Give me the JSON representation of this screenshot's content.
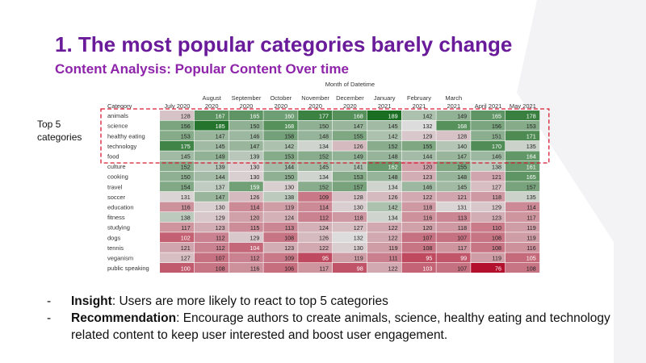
{
  "slide": {
    "title": "1. The most popular categories barely change",
    "subtitle": "Content Analysis: Popular Content Over time"
  },
  "chart_data": {
    "type": "heatmap",
    "header": "Month of Datetime",
    "row_header": "Category",
    "columns": [
      [
        "July 2020"
      ],
      [
        "August",
        "2020"
      ],
      [
        "September",
        "2020"
      ],
      [
        "October",
        "2020"
      ],
      [
        "November",
        "2020"
      ],
      [
        "December",
        "2020"
      ],
      [
        "January",
        "2021"
      ],
      [
        "February",
        "2021"
      ],
      [
        "March",
        "2021"
      ],
      [
        "April 2021"
      ],
      [
        "May 2021"
      ]
    ],
    "rows": [
      "animals",
      "science",
      "healthy eating",
      "technology",
      "food",
      "culture",
      "cooking",
      "travel",
      "soccer",
      "education",
      "fitness",
      "studying",
      "dogs",
      "tennis",
      "veganism",
      "public speaking"
    ],
    "values": [
      [
        128,
        167,
        165,
        160,
        177,
        168,
        189,
        142,
        149,
        165,
        178
      ],
      [
        156,
        185,
        150,
        168,
        150,
        147,
        145,
        132,
        168,
        156,
        153
      ],
      [
        153,
        147,
        146,
        158,
        148,
        155,
        142,
        129,
        128,
        151,
        171
      ],
      [
        175,
        145,
        147,
        142,
        134,
        126,
        152,
        155,
        140,
        170,
        135
      ],
      [
        145,
        149,
        139,
        153,
        152,
        149,
        148,
        144,
        147,
        146,
        164
      ],
      [
        152,
        139,
        130,
        144,
        145,
        141,
        162,
        120,
        155,
        138,
        161
      ],
      [
        150,
        144,
        130,
        150,
        134,
        153,
        148,
        123,
        148,
        121,
        165
      ],
      [
        154,
        137,
        159,
        130,
        152,
        157,
        134,
        146,
        145,
        127,
        157
      ],
      [
        131,
        147,
        126,
        138,
        109,
        128,
        126,
        122,
        121,
        118,
        135
      ],
      [
        116,
        130,
        114,
        119,
        114,
        130,
        142,
        118,
        131,
        129,
        114
      ],
      [
        138,
        129,
        120,
        124,
        112,
        118,
        134,
        116,
        113,
        123,
        117
      ],
      [
        117,
        123,
        115,
        113,
        124,
        127,
        122,
        120,
        118,
        110,
        119
      ],
      [
        102,
        112,
        129,
        108,
        126,
        132,
        122,
        107,
        107,
        108,
        119
      ],
      [
        121,
        112,
        104,
        123,
        122,
        130,
        119,
        108,
        117,
        108,
        116
      ],
      [
        127,
        107,
        112,
        109,
        95,
        119,
        111,
        95,
        99,
        119,
        105
      ],
      [
        100,
        108,
        116,
        106,
        117,
        98,
        122,
        103,
        107,
        76,
        108
      ]
    ],
    "highlight_label": [
      "Top 5",
      "categories"
    ],
    "highlight_rows": [
      0,
      4
    ],
    "color_scale": {
      "low": "#b3102e",
      "mid": "#dcdcdc",
      "high": "#1a6e22"
    }
  },
  "bullets": [
    {
      "dash": "-",
      "label": "Insight",
      "sep": ": ",
      "text": "Users are more likely to react to top 5 categories"
    },
    {
      "dash": "-",
      "label": "Recommendation",
      "sep": ": ",
      "text": "Encourage authors to create animals, science, healthy eating and technology related content to keep user interested and boost user engagement."
    }
  ]
}
